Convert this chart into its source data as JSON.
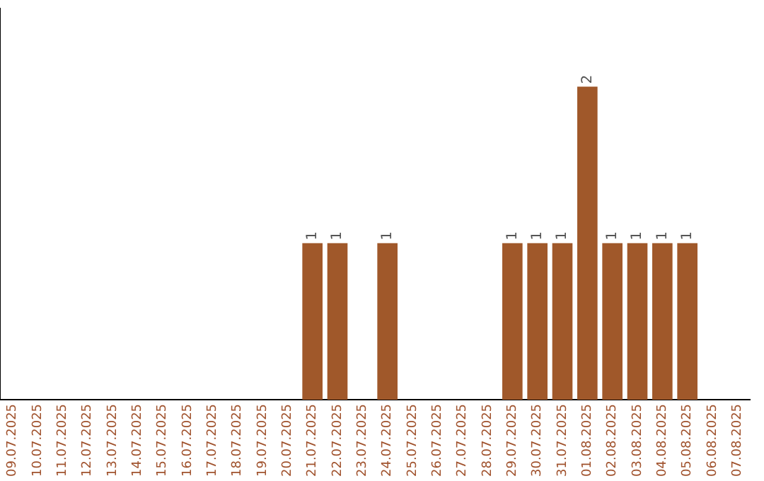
{
  "chart_data": {
    "type": "bar",
    "categories": [
      "09.07.2025",
      "10.07.2025",
      "11.07.2025",
      "12.07.2025",
      "13.07.2025",
      "14.07.2025",
      "15.07.2025",
      "16.07.2025",
      "17.07.2025",
      "18.07.2025",
      "19.07.2025",
      "20.07.2025",
      "21.07.2025",
      "22.07.2025",
      "23.07.2025",
      "24.07.2025",
      "25.07.2025",
      "26.07.2025",
      "27.07.2025",
      "28.07.2025",
      "29.07.2025",
      "30.07.2025",
      "31.07.2025",
      "01.08.2025",
      "02.08.2025",
      "03.08.2025",
      "04.08.2025",
      "05.08.2025",
      "06.08.2025",
      "07.08.2025"
    ],
    "values": [
      null,
      null,
      null,
      null,
      null,
      null,
      null,
      null,
      null,
      null,
      null,
      null,
      1,
      1,
      null,
      1,
      null,
      null,
      null,
      null,
      1,
      1,
      1,
      2,
      1,
      1,
      1,
      1,
      null,
      null
    ],
    "data_labels": true,
    "color": "#a0582a",
    "grid": false,
    "legend": false,
    "tick_labels": "x"
  }
}
